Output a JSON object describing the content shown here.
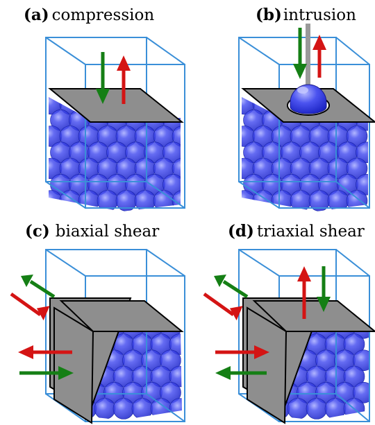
{
  "panels": {
    "a": {
      "tag": "(a)",
      "label": "compression"
    },
    "b": {
      "tag": "(b)",
      "label": "intrusion"
    },
    "c": {
      "tag": "(c)",
      "label": "biaxial shear"
    },
    "d": {
      "tag": "(d)",
      "label": "triaxial shear"
    }
  },
  "colors": {
    "box_edge": "#3a8fd8",
    "sphere_fill": "#2a35e0",
    "sphere_highlight": "#8a90ff",
    "plate": "#8e8e8e",
    "arrow_in": "#d41414",
    "arrow_out": "#157f15",
    "rod": "#9a9a9a"
  }
}
